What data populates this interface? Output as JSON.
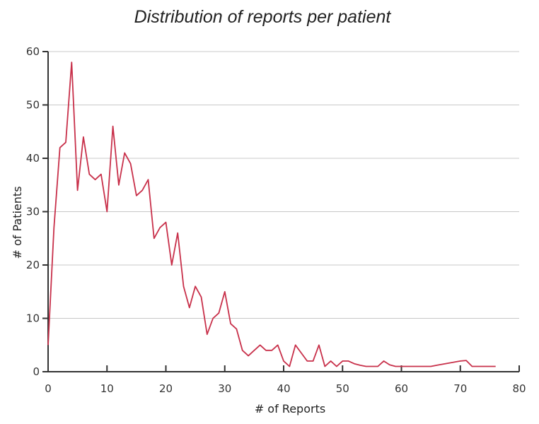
{
  "chart_data": {
    "type": "line",
    "title": "Distribution of reports per patient",
    "xlabel": "# of Reports",
    "ylabel": "# of Patients",
    "xlim": [
      0,
      80
    ],
    "ylim": [
      0,
      60
    ],
    "xticks": [
      0,
      10,
      20,
      30,
      40,
      50,
      60,
      70,
      80
    ],
    "yticks": [
      0,
      10,
      20,
      30,
      40,
      50,
      60
    ],
    "grid": "horizontal",
    "line_color": "#c8304a",
    "series": [
      {
        "x": [
          0,
          1,
          2,
          3,
          4,
          5,
          6,
          7,
          8,
          9,
          10,
          11,
          12,
          13,
          14,
          15,
          16,
          17,
          18,
          19,
          20,
          21,
          22,
          23,
          24,
          25,
          26,
          27,
          28,
          29,
          30,
          31,
          32,
          33,
          34,
          35,
          36,
          37,
          38,
          39,
          40,
          41,
          42,
          43,
          44,
          45,
          46,
          47,
          48,
          49,
          50,
          51,
          52,
          53,
          54,
          55,
          56,
          57,
          58,
          59,
          60,
          61,
          62,
          63,
          64,
          65,
          66,
          67,
          68,
          69,
          70,
          71,
          72,
          73,
          74,
          75,
          76
        ],
        "y": [
          5,
          27,
          42,
          43,
          58,
          34,
          44,
          37,
          36,
          37,
          30,
          46,
          35,
          41,
          39,
          33,
          34,
          36,
          25,
          27,
          28,
          20,
          26,
          16,
          12,
          16,
          14,
          7,
          10,
          11,
          15,
          9,
          8,
          4,
          3,
          4,
          5,
          4,
          4,
          5,
          2,
          1,
          5,
          3.5,
          2,
          2,
          5,
          1,
          2,
          1,
          2,
          2,
          1.5,
          1.2,
          1,
          1,
          1,
          2,
          1.3,
          1,
          1,
          1,
          1,
          1,
          1,
          1,
          1.2,
          1.4,
          1.6,
          1.8,
          2,
          2.1,
          1,
          1,
          1,
          1,
          1
        ]
      }
    ]
  }
}
